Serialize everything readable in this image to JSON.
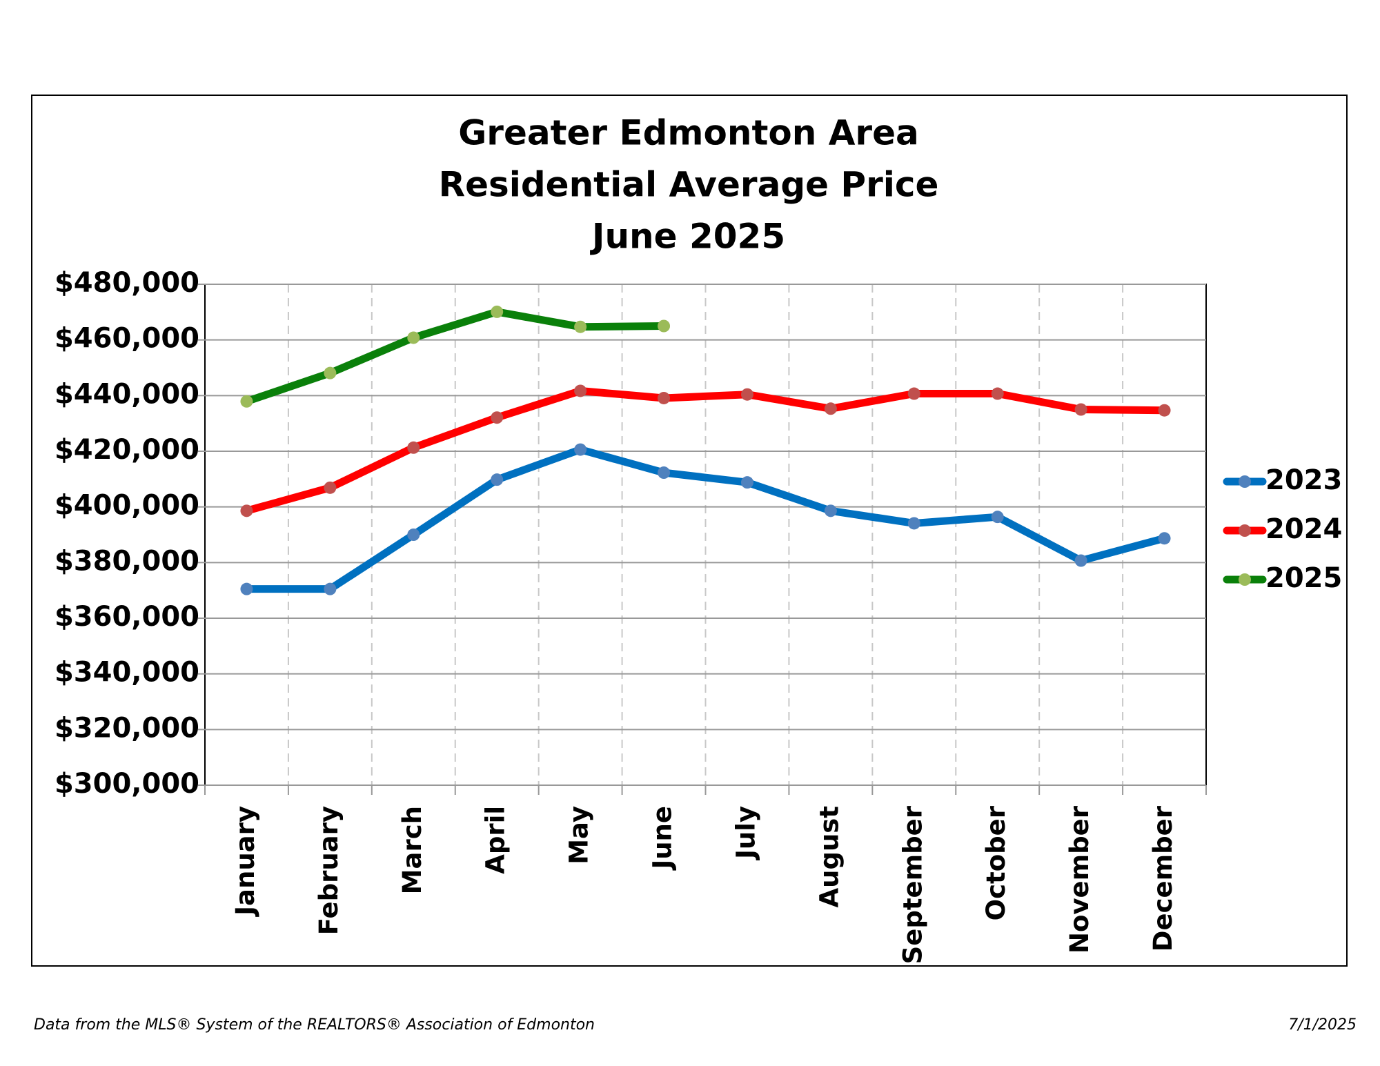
{
  "chart_data": {
    "type": "line",
    "title": [
      "Greater Edmonton Area",
      "Residential Average Price",
      "June 2025"
    ],
    "categories": [
      "January",
      "February",
      "March",
      "April",
      "May",
      "June",
      "July",
      "August",
      "September",
      "October",
      "November",
      "December"
    ],
    "series": [
      {
        "name": "2023",
        "color": "#0070c0",
        "marker_color": "#4f81bd",
        "values": [
          370500,
          370500,
          390000,
          409800,
          420600,
          412300,
          408800,
          398600,
          394100,
          396400,
          380700,
          388700
        ]
      },
      {
        "name": "2024",
        "color": "#ff0000",
        "marker_color": "#c0504d",
        "values": [
          398600,
          406900,
          421300,
          432100,
          441700,
          439100,
          440400,
          435300,
          440700,
          440700,
          435000,
          434700
        ]
      },
      {
        "name": "2025",
        "color": "#0a800a",
        "marker_color": "#9bbb59",
        "values": [
          437900,
          448100,
          460800,
          470100,
          464700,
          465000,
          null,
          null,
          null,
          null,
          null,
          null
        ]
      }
    ],
    "ylim": [
      300000,
      480000
    ],
    "yticks": [
      {
        "value": 300000,
        "label": "$300,000"
      },
      {
        "value": 320000,
        "label": "$320,000"
      },
      {
        "value": 340000,
        "label": "$340,000"
      },
      {
        "value": 360000,
        "label": "$360,000"
      },
      {
        "value": 380000,
        "label": "$380,000"
      },
      {
        "value": 400000,
        "label": "$400,000"
      },
      {
        "value": 420000,
        "label": "$420,000"
      },
      {
        "value": 440000,
        "label": "$440,000"
      },
      {
        "value": 460000,
        "label": "$460,000"
      },
      {
        "value": 480000,
        "label": "$480,000"
      }
    ],
    "grid": true,
    "legend": "right",
    "source": "Data from the MLS® System of the REALTORS® Association of Edmonton",
    "date": "7/1/2025"
  }
}
